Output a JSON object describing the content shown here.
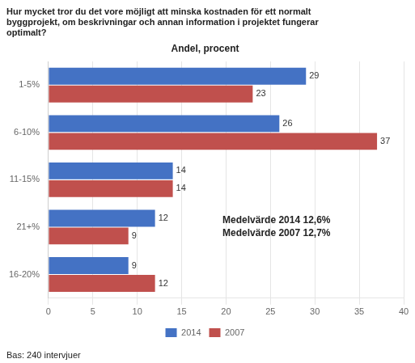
{
  "chart_data": {
    "type": "bar",
    "orientation": "horizontal",
    "title": "Hur mycket tror du det vore möjligt att minska kostnaden för ett normalt\nbyggprojekt, om beskrivningar och annan information i projektet fungerar\noptimalt?",
    "subtitle": "Andel, procent",
    "categories": [
      "16-20%",
      "21+%",
      "11-15%",
      "6-10%",
      "1-5%"
    ],
    "series": [
      {
        "name": "2014",
        "color": "#4472C4",
        "values": [
          9,
          12,
          14,
          26,
          29
        ]
      },
      {
        "name": "2007",
        "color": "#C0504D",
        "values": [
          12,
          9,
          14,
          37,
          23
        ]
      }
    ],
    "xlim": [
      0,
      40
    ],
    "xticks": [
      0,
      5,
      10,
      15,
      20,
      25,
      30,
      35,
      40
    ],
    "grid": true,
    "legend": "bottom",
    "data_labels": true,
    "annotation": "Medelvärde 2014 12,6%\nMedelvärde 2007 12,7%",
    "footnote": "Bas: 240 intervjuer"
  }
}
